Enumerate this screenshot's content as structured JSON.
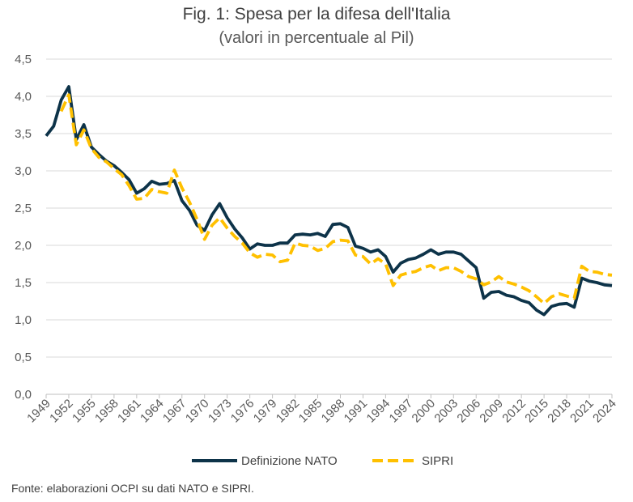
{
  "header": {
    "title": "Fig. 1: Spesa per la difesa dell'Italia",
    "subtitle": "(valori in percentuale al Pil)"
  },
  "footer": {
    "source": "Fonte: elaborazioni OCPI su dati NATO e SIPRI."
  },
  "colors": {
    "nato": "#0d3349",
    "sipri": "#ffc000",
    "grid": "#d9d9d9",
    "axis": "#bfbfbf"
  },
  "chart_data": {
    "type": "line",
    "ylim": [
      0,
      4.5
    ],
    "yticks": [
      "0,0",
      "0,5",
      "1,0",
      "1,5",
      "2,0",
      "2,5",
      "3,0",
      "3,5",
      "4,0",
      "4,5"
    ],
    "xlim": [
      1949,
      2024
    ],
    "xticks": [
      1949,
      1952,
      1955,
      1958,
      1961,
      1964,
      1967,
      1970,
      1973,
      1976,
      1979,
      1982,
      1985,
      1988,
      1991,
      1994,
      1997,
      2000,
      2003,
      2006,
      2009,
      2012,
      2015,
      2018,
      2021,
      2024
    ],
    "grid": true,
    "legend_position": "bottom",
    "series": [
      {
        "name": "Definizione NATO",
        "style": "solid",
        "x": [
          1949,
          1950,
          1951,
          1952,
          1953,
          1954,
          1955,
          1956,
          1957,
          1958,
          1959,
          1960,
          1961,
          1962,
          1963,
          1964,
          1965,
          1966,
          1967,
          1968,
          1969,
          1970,
          1971,
          1972,
          1973,
          1974,
          1975,
          1976,
          1977,
          1978,
          1979,
          1980,
          1981,
          1982,
          1983,
          1984,
          1985,
          1986,
          1987,
          1988,
          1989,
          1990,
          1991,
          1992,
          1993,
          1994,
          1995,
          1996,
          1997,
          1998,
          1999,
          2000,
          2001,
          2002,
          2003,
          2004,
          2005,
          2006,
          2007,
          2008,
          2009,
          2010,
          2011,
          2012,
          2013,
          2014,
          2015,
          2016,
          2017,
          2018,
          2019,
          2020,
          2021,
          2022,
          2023,
          2024
        ],
        "values": [
          3.47,
          3.6,
          3.95,
          4.13,
          3.42,
          3.62,
          3.32,
          3.22,
          3.13,
          3.07,
          2.98,
          2.88,
          2.7,
          2.76,
          2.86,
          2.82,
          2.83,
          2.87,
          2.6,
          2.47,
          2.27,
          2.2,
          2.41,
          2.56,
          2.37,
          2.22,
          2.1,
          1.95,
          2.02,
          2.0,
          2.0,
          2.03,
          2.03,
          2.14,
          2.15,
          2.14,
          2.16,
          2.12,
          2.28,
          2.29,
          2.24,
          1.99,
          1.96,
          1.91,
          1.94,
          1.85,
          1.64,
          1.76,
          1.81,
          1.83,
          1.88,
          1.94,
          1.88,
          1.91,
          1.91,
          1.88,
          1.79,
          1.7,
          1.29,
          1.37,
          1.38,
          1.33,
          1.31,
          1.26,
          1.23,
          1.13,
          1.07,
          1.18,
          1.21,
          1.22,
          1.17,
          1.56,
          1.52,
          1.5,
          1.47,
          1.46
        ]
      },
      {
        "name": "SIPRI",
        "style": "dashed",
        "x": [
          1951,
          1952,
          1953,
          1954,
          1955,
          1956,
          1957,
          1958,
          1959,
          1960,
          1961,
          1962,
          1963,
          1964,
          1965,
          1966,
          1967,
          1968,
          1969,
          1970,
          1971,
          1972,
          1973,
          1974,
          1975,
          1976,
          1977,
          1978,
          1979,
          1980,
          1981,
          1982,
          1983,
          1984,
          1985,
          1986,
          1987,
          1988,
          1989,
          1990,
          1991,
          1992,
          1993,
          1994,
          1995,
          1996,
          1997,
          1998,
          1999,
          2000,
          2001,
          2002,
          2003,
          2004,
          2005,
          2006,
          2007,
          2008,
          2009,
          2010,
          2011,
          2012,
          2013,
          2014,
          2015,
          2016,
          2017,
          2018,
          2019,
          2020,
          2021,
          2022,
          2023,
          2024
        ],
        "values": [
          3.8,
          4.02,
          3.35,
          3.55,
          3.3,
          3.18,
          3.12,
          3.03,
          2.95,
          2.8,
          2.62,
          2.63,
          2.75,
          2.72,
          2.7,
          3.01,
          2.77,
          2.58,
          2.35,
          2.08,
          2.27,
          2.37,
          2.23,
          2.12,
          2.03,
          1.9,
          1.84,
          1.88,
          1.87,
          1.78,
          1.8,
          2.03,
          2.0,
          1.99,
          1.93,
          1.96,
          2.05,
          2.07,
          2.06,
          1.87,
          1.85,
          1.75,
          1.82,
          1.75,
          1.46,
          1.6,
          1.63,
          1.65,
          1.7,
          1.73,
          1.66,
          1.7,
          1.7,
          1.65,
          1.58,
          1.55,
          1.47,
          1.51,
          1.58,
          1.51,
          1.48,
          1.44,
          1.39,
          1.31,
          1.22,
          1.31,
          1.35,
          1.32,
          1.29,
          1.72,
          1.65,
          1.64,
          1.61,
          1.6
        ]
      }
    ]
  }
}
